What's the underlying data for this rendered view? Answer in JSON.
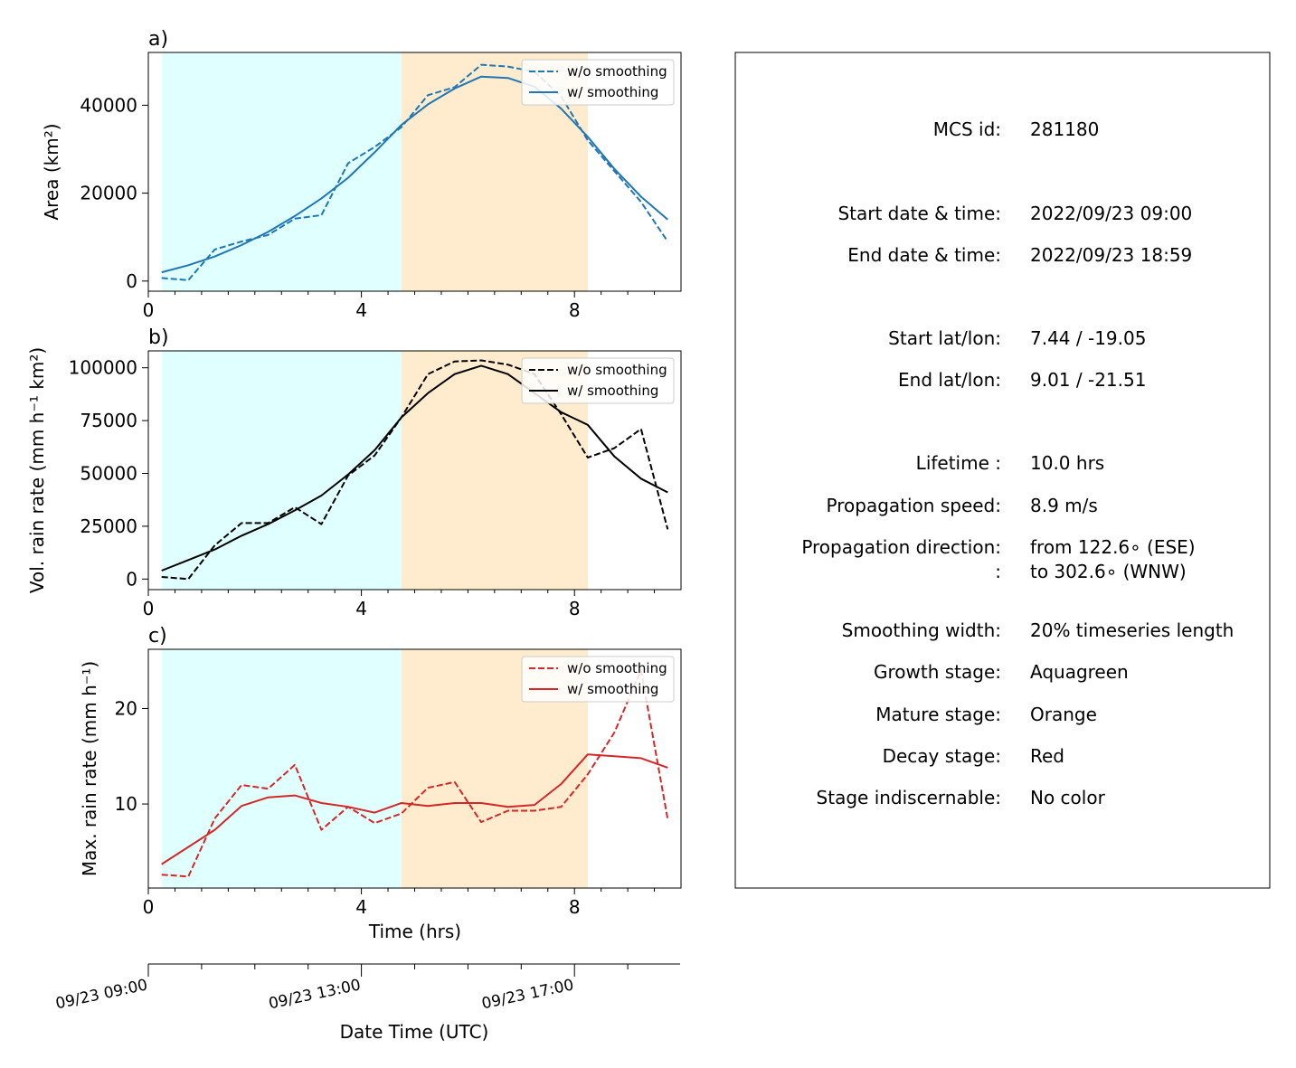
{
  "colors": {
    "growth_shade": "#e0ffff",
    "mature_shade": "#ffebcd",
    "area": "#1f77b4",
    "volrain": "#000000",
    "maxrain": "#d62728"
  },
  "chart_data": [
    {
      "type": "line",
      "panel_label": "a)",
      "ylabel": "Area  (km²)",
      "xlim": [
        0,
        10
      ],
      "ylim": [
        -2300,
        52000
      ],
      "yticks": [
        0,
        20000,
        40000
      ],
      "ytick_labels": [
        "0",
        "20000",
        "40000"
      ],
      "xticks": [
        0,
        4,
        8
      ],
      "xtick_labels": [
        "0",
        "4",
        "8"
      ],
      "shaded_regions": [
        {
          "stage": "growth",
          "x0": 0.25,
          "x1": 4.75
        },
        {
          "stage": "mature",
          "x0": 4.75,
          "x1": 8.25
        }
      ],
      "legend": {
        "position": "upper right",
        "entries": [
          "w/o smoothing",
          "w/ smoothing"
        ]
      },
      "x": [
        0.25,
        0.75,
        1.25,
        1.75,
        2.25,
        2.75,
        3.25,
        3.75,
        4.25,
        4.75,
        5.25,
        5.75,
        6.25,
        6.75,
        7.25,
        7.75,
        8.25,
        8.75,
        9.25,
        9.75
      ],
      "series": [
        {
          "name": "w/o smoothing",
          "style": "dashed",
          "values": [
            700,
            200,
            7200,
            9000,
            10500,
            14200,
            15000,
            26800,
            30500,
            35000,
            42300,
            44100,
            49200,
            48800,
            47600,
            42000,
            32000,
            25000,
            18000,
            9000
          ]
        },
        {
          "name": "w/ smoothing",
          "style": "solid",
          "values": [
            2000,
            3600,
            5600,
            8200,
            11200,
            14800,
            18800,
            23500,
            29300,
            35500,
            40200,
            43800,
            46500,
            46200,
            44200,
            39200,
            32800,
            25500,
            19200,
            14000
          ]
        }
      ]
    },
    {
      "type": "line",
      "panel_label": "b)",
      "ylabel": "Vol. rain rate (mm h⁻¹ km²)",
      "xlim": [
        0,
        10
      ],
      "ylim": [
        -5000,
        108000
      ],
      "yticks": [
        0,
        25000,
        50000,
        75000,
        100000
      ],
      "ytick_labels": [
        "0",
        "25000",
        "50000",
        "75000",
        "100000"
      ],
      "xticks": [
        0,
        4,
        8
      ],
      "xtick_labels": [
        "0",
        "4",
        "8"
      ],
      "shaded_regions": [
        {
          "stage": "growth",
          "x0": 0.25,
          "x1": 4.75
        },
        {
          "stage": "mature",
          "x0": 4.75,
          "x1": 8.25
        }
      ],
      "legend": {
        "position": "upper right",
        "entries": [
          "w/o smoothing",
          "w/ smoothing"
        ]
      },
      "x": [
        0.25,
        0.75,
        1.25,
        1.75,
        2.25,
        2.75,
        3.25,
        3.75,
        4.25,
        4.75,
        5.25,
        5.75,
        6.25,
        6.75,
        7.25,
        7.75,
        8.25,
        8.75,
        9.25,
        9.75
      ],
      "series": [
        {
          "name": "w/o smoothing",
          "style": "dashed",
          "values": [
            1000,
            0,
            16000,
            26500,
            26500,
            34000,
            26000,
            49000,
            58500,
            76500,
            97000,
            103000,
            103500,
            101500,
            97000,
            78000,
            57500,
            62000,
            71000,
            23500
          ]
        },
        {
          "name": "w/ smoothing",
          "style": "solid",
          "values": [
            4000,
            9000,
            14000,
            20500,
            26000,
            32500,
            39500,
            49500,
            61000,
            76500,
            88000,
            97000,
            101000,
            97000,
            88000,
            79000,
            73000,
            58000,
            47500,
            41000
          ]
        }
      ]
    },
    {
      "type": "line",
      "panel_label": "c)",
      "ylabel": "Max. rain rate  (mm h⁻¹)",
      "xlabel": "Time (hrs)",
      "xlim": [
        0,
        10
      ],
      "ylim": [
        1.2,
        26.2
      ],
      "yticks": [
        10,
        20
      ],
      "ytick_labels": [
        "10",
        "20"
      ],
      "xticks": [
        0,
        4,
        8
      ],
      "xtick_labels": [
        "0",
        "4",
        "8"
      ],
      "shaded_regions": [
        {
          "stage": "growth",
          "x0": 0.25,
          "x1": 4.75
        },
        {
          "stage": "mature",
          "x0": 4.75,
          "x1": 8.25
        }
      ],
      "legend": {
        "position": "upper right",
        "entries": [
          "w/o smoothing",
          "w/ smoothing"
        ]
      },
      "x": [
        0.25,
        0.75,
        1.25,
        1.75,
        2.25,
        2.75,
        3.25,
        3.75,
        4.25,
        4.75,
        5.25,
        5.75,
        6.25,
        6.75,
        7.25,
        7.75,
        8.25,
        8.75,
        9.25,
        9.75
      ],
      "series": [
        {
          "name": "w/o smoothing",
          "style": "dashed",
          "values": [
            2.6,
            2.4,
            8.5,
            12.0,
            11.6,
            14.1,
            7.3,
            9.7,
            8.0,
            9.0,
            11.7,
            12.3,
            8.1,
            9.3,
            9.3,
            9.7,
            13.1,
            17.5,
            24.0,
            8.4
          ]
        },
        {
          "name": "w/ smoothing",
          "style": "solid",
          "values": [
            3.7,
            5.5,
            7.3,
            9.8,
            10.7,
            10.9,
            10.1,
            9.7,
            9.1,
            10.1,
            9.8,
            10.1,
            10.1,
            9.7,
            9.9,
            12.1,
            15.2,
            15.0,
            14.8,
            13.8
          ]
        }
      ]
    }
  ],
  "datetime_axis": {
    "xlabel": "Date Time (UTC)",
    "tick_labels": [
      "09/23 09:00",
      "09/23 13:00",
      "09/23 17:00"
    ]
  },
  "info_panel": {
    "rows": [
      {
        "label": "MCS id:",
        "value": "281180"
      },
      {
        "label": "Start date & time:",
        "value": "2022/09/23 09:00"
      },
      {
        "label": "End date & time:",
        "value": "2022/09/23 18:59"
      },
      {
        "label": "Start lat/lon:",
        "value": "7.44 / -19.05"
      },
      {
        "label": "End lat/lon:",
        "value": "9.01 / -21.51"
      },
      {
        "label": "Lifetime :",
        "value": "10.0 hrs"
      },
      {
        "label": "Propagation speed:",
        "value": "8.9 m/s"
      },
      {
        "label": "Propagation direction:",
        "value": "from 122.6∘ (ESE)"
      },
      {
        "label": ":",
        "value": "to   302.6∘ (WNW)"
      },
      {
        "label": "Smoothing width:",
        "value": "20% timeseries length"
      },
      {
        "label": "Growth stage:",
        "value": "Aquagreen"
      },
      {
        "label": "Mature stage:",
        "value": "Orange"
      },
      {
        "label": "Decay stage:",
        "value": "Red"
      },
      {
        "label": "Stage indiscernable:",
        "value": "No color"
      }
    ]
  }
}
